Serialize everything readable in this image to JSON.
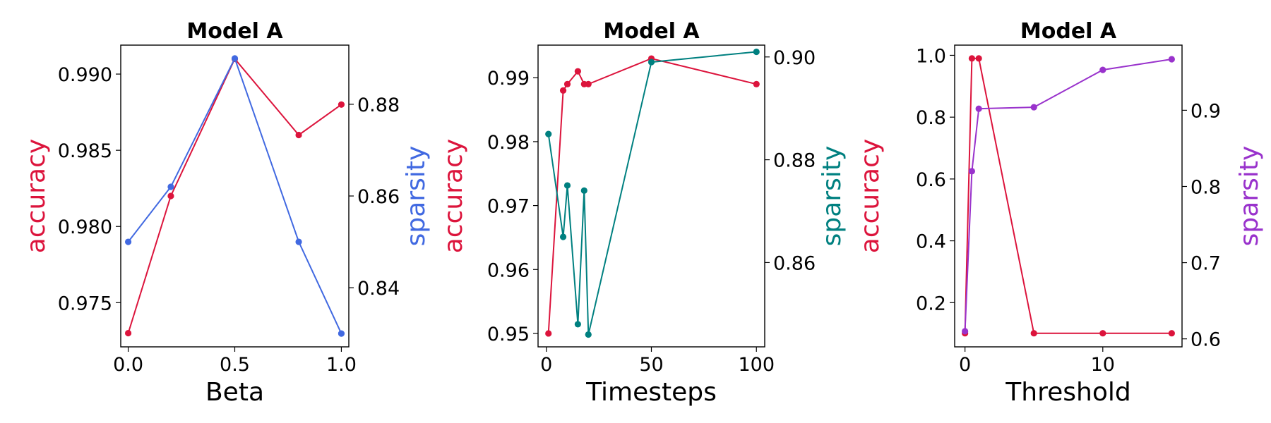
{
  "chart_data": [
    {
      "type": "line",
      "title": "Model A",
      "xlabel": "Beta",
      "xlim": [
        -0.035,
        1.035
      ],
      "xticks": [
        0.0,
        0.5,
        1.0
      ],
      "xtick_labels": [
        "0.0",
        "0.5",
        "1.0"
      ],
      "left_axis": {
        "label": "accuracy",
        "color": "#dc143c",
        "lim": [
          0.9721,
          0.9919
        ],
        "ticks": [
          0.975,
          0.98,
          0.985,
          0.99
        ],
        "tick_labels": [
          "0.975",
          "0.980",
          "0.985",
          "0.990"
        ]
      },
      "right_axis": {
        "label": "sparsity",
        "color": "#4169e1",
        "lim": [
          0.8271,
          0.8929
        ],
        "ticks": [
          0.84,
          0.86,
          0.88
        ],
        "tick_labels": [
          "0.84",
          "0.86",
          "0.88"
        ]
      },
      "series": [
        {
          "axis": "left",
          "x": [
            0.0,
            0.2,
            0.5,
            0.8,
            1.0
          ],
          "y": [
            0.973,
            0.982,
            0.991,
            0.986,
            0.988
          ]
        },
        {
          "axis": "right",
          "x": [
            0.0,
            0.2,
            0.5,
            0.8,
            1.0
          ],
          "y": [
            0.85,
            0.862,
            0.89,
            0.85,
            0.83
          ]
        }
      ]
    },
    {
      "type": "line",
      "title": "Model A",
      "xlabel": "Timesteps",
      "xlim": [
        -3.95,
        103.95
      ],
      "xticks": [
        0,
        50,
        100
      ],
      "xtick_labels": [
        "0",
        "50",
        "100"
      ],
      "left_axis": {
        "label": "accuracy",
        "color": "#dc143c",
        "lim": [
          0.9479,
          0.9951
        ],
        "ticks": [
          0.95,
          0.96,
          0.97,
          0.98,
          0.99
        ],
        "tick_labels": [
          "0.95",
          "0.96",
          "0.97",
          "0.98",
          "0.99"
        ]
      },
      "right_axis": {
        "label": "sparsity",
        "color": "#008080",
        "lim": [
          0.8436,
          0.9023
        ],
        "ticks": [
          0.86,
          0.88,
          0.9
        ],
        "tick_labels": [
          "0.86",
          "0.88",
          "0.90"
        ]
      },
      "series": [
        {
          "axis": "left",
          "x": [
            1,
            8,
            10,
            15,
            18,
            20,
            50,
            100
          ],
          "y": [
            0.95,
            0.988,
            0.989,
            0.991,
            0.989,
            0.989,
            0.993,
            0.989
          ]
        },
        {
          "axis": "right",
          "x": [
            1,
            8,
            10,
            15,
            18,
            20,
            50,
            100
          ],
          "y": [
            0.885,
            0.865,
            0.875,
            0.848,
            0.874,
            0.846,
            0.899,
            0.901
          ]
        }
      ]
    },
    {
      "type": "line",
      "title": "Model A",
      "xlabel": "Threshold",
      "xlim": [
        -0.75,
        15.75
      ],
      "xticks": [
        0,
        10
      ],
      "xtick_labels": [
        "0",
        "10"
      ],
      "left_axis": {
        "label": "accuracy",
        "color": "#dc143c",
        "lim": [
          0.057,
          1.033
        ],
        "ticks": [
          0.2,
          0.4,
          0.6,
          0.8,
          1.0
        ],
        "tick_labels": [
          "0.2",
          "0.4",
          "0.6",
          "0.8",
          "1.0"
        ]
      },
      "right_axis": {
        "label": "sparsity",
        "color": "#9932cc",
        "lim": [
          0.5895,
          0.9855
        ],
        "ticks": [
          0.6,
          0.7,
          0.8,
          0.9
        ],
        "tick_labels": [
          "0.6",
          "0.7",
          "0.8",
          "0.9"
        ]
      },
      "series": [
        {
          "axis": "left",
          "x": [
            0,
            0.5,
            1,
            5,
            10,
            15
          ],
          "y": [
            0.101,
            0.99,
            0.99,
            0.101,
            0.101,
            0.101
          ]
        },
        {
          "axis": "right",
          "x": [
            0,
            0.5,
            1,
            5,
            10,
            15
          ],
          "y": [
            0.61,
            0.82,
            0.902,
            0.904,
            0.953,
            0.967
          ]
        }
      ]
    }
  ]
}
